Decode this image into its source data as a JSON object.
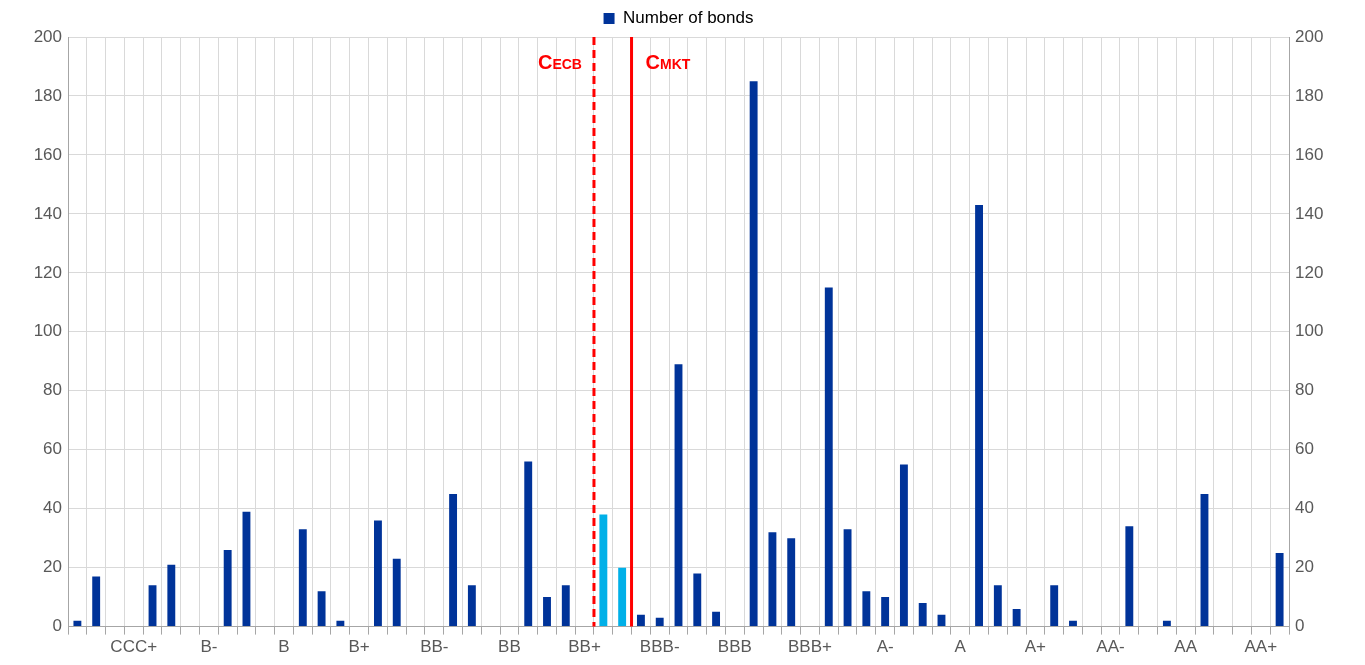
{
  "chart_data": {
    "type": "bar",
    "categories": [
      null,
      null,
      null,
      "CCC+",
      null,
      null,
      null,
      "B-",
      null,
      null,
      null,
      "B",
      null,
      null,
      null,
      "B+",
      null,
      null,
      null,
      "BB-",
      null,
      null,
      null,
      "BB",
      null,
      null,
      null,
      "BB+",
      null,
      null,
      null,
      "BBB-",
      null,
      null,
      null,
      "BBB",
      null,
      null,
      null,
      "BBB+",
      null,
      null,
      null,
      "A-",
      null,
      null,
      null,
      "A",
      null,
      null,
      null,
      "A+",
      null,
      null,
      null,
      "AA-",
      null,
      null,
      null,
      "AA",
      null,
      null,
      null,
      "AA+",
      null
    ],
    "series": [
      {
        "name": "Number of bonds",
        "color": "#003399",
        "colors": [
          "#003399",
          "#003399",
          "#003399",
          "#003399",
          "#003399",
          "#003399",
          "#003399",
          "#003399",
          "#003399",
          "#003399",
          "#003399",
          "#003399",
          "#003399",
          "#003399",
          "#003399",
          "#003399",
          "#003399",
          "#003399",
          "#003399",
          "#003399",
          "#003399",
          "#003399",
          "#003399",
          "#003399",
          "#003399",
          "#003399",
          "#003399",
          "#003399",
          "#00b0e8",
          "#00b0e8",
          "#003399",
          "#003399",
          "#003399",
          "#003399",
          "#003399",
          "#003399",
          "#003399",
          "#003399",
          "#003399",
          "#003399",
          "#003399",
          "#003399",
          "#003399",
          "#003399",
          "#003399",
          "#003399",
          "#003399",
          "#003399",
          "#003399",
          "#003399",
          "#003399",
          "#003399",
          "#003399",
          "#003399",
          "#003399",
          "#003399",
          "#003399",
          "#003399",
          "#003399",
          "#003399",
          "#003399",
          "#003399",
          "#003399",
          "#003399",
          "#003399"
        ],
        "values": [
          2,
          17,
          null,
          null,
          14,
          21,
          null,
          null,
          26,
          39,
          null,
          null,
          33,
          12,
          2,
          null,
          36,
          23,
          null,
          null,
          45,
          14,
          null,
          null,
          56,
          10,
          14,
          null,
          38,
          20,
          4,
          3,
          89,
          18,
          5,
          null,
          185,
          32,
          30,
          null,
          115,
          33,
          12,
          10,
          55,
          8,
          4,
          null,
          143,
          14,
          6,
          null,
          14,
          2,
          null,
          null,
          34,
          null,
          2,
          null,
          45,
          null,
          null,
          null,
          25
        ]
      }
    ],
    "ylim": [
      0,
      200
    ],
    "yticks": [
      0,
      20,
      40,
      60,
      80,
      100,
      120,
      140,
      160,
      180,
      200
    ],
    "y2lim": [
      0,
      200
    ],
    "y2ticks": [
      0,
      20,
      40,
      60,
      80,
      100,
      120,
      140,
      160,
      180,
      200
    ],
    "annotations": [
      "C$_{ECB}$",
      "C$_{MKT}$"
    ],
    "grid": true,
    "legend": "top"
  }
}
